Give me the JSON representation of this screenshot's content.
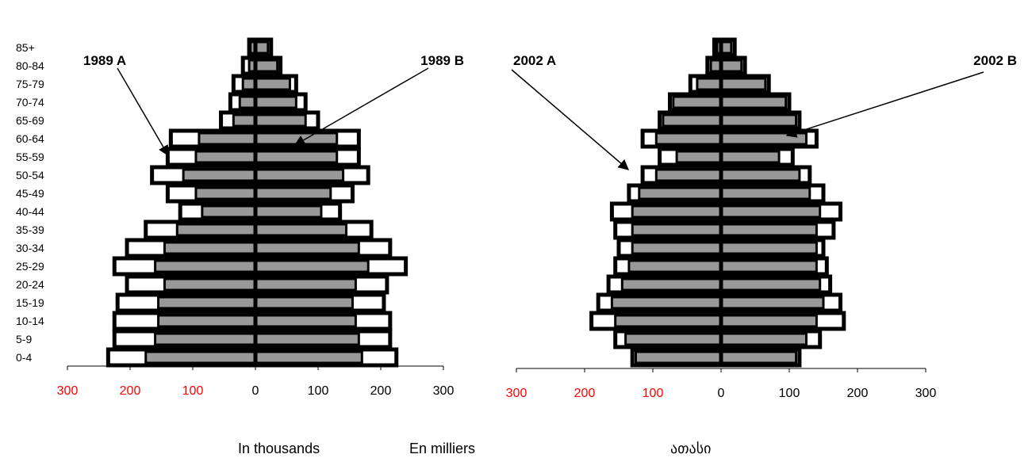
{
  "chart_data": {
    "type": "bar",
    "subtype": "population-pyramid",
    "categories": [
      "0-4",
      "5-9",
      "10-14",
      "15-19",
      "20-24",
      "25-29",
      "30-34",
      "35-39",
      "40-44",
      "45-49",
      "50-54",
      "55-59",
      "60-64",
      "65-69",
      "70-74",
      "75-79",
      "80-84",
      "85+"
    ],
    "x_tick_labels": [
      "300",
      "200",
      "100",
      "0",
      "100",
      "200",
      "300"
    ],
    "x_tick_values": [
      -300,
      -200,
      -100,
      0,
      100,
      200,
      300
    ],
    "xlim": [
      -300,
      300
    ],
    "colors": {
      "left_ticks": "#ff0000",
      "right_ticks": "#000000",
      "filled_bar": "#999999",
      "outline": "#000000",
      "open_bar": "#ffffff"
    },
    "units": [
      "In thousands",
      "En milliers",
      "ათასი"
    ],
    "panels": [
      {
        "annotations": [
          {
            "label": "1989 A",
            "points_to_group": "50-54",
            "side": "left"
          },
          {
            "label": "1989 B",
            "points_to_group": "55-59",
            "side": "right"
          }
        ],
        "series": [
          {
            "style": "outline-open",
            "left": [
              235,
              225,
              225,
              220,
              205,
              225,
              205,
              175,
              120,
              140,
              165,
              140,
              135,
              55,
              40,
              35,
              20,
              10
            ],
            "right": [
              225,
              215,
              215,
              205,
              210,
              240,
              215,
              185,
              135,
              155,
              180,
              165,
              165,
              100,
              80,
              65,
              40,
              25
            ]
          },
          {
            "style": "filled-gray",
            "left": [
              175,
              160,
              155,
              155,
              145,
              160,
              145,
              125,
              85,
              95,
              115,
              95,
              90,
              35,
              25,
              20,
              10,
              8
            ],
            "right": [
              170,
              165,
              160,
              155,
              160,
              180,
              165,
              145,
              105,
              120,
              140,
              130,
              130,
              80,
              65,
              55,
              35,
              20
            ]
          }
        ]
      },
      {
        "annotations": [
          {
            "label": "2002 A",
            "points_to_group": "45-49",
            "side": "left"
          },
          {
            "label": "2002 B",
            "points_to_group": "55-59",
            "side": "right"
          }
        ],
        "series": [
          {
            "style": "outline-open",
            "left": [
              130,
              155,
              190,
              180,
              165,
              155,
              150,
              155,
              160,
              135,
              115,
              90,
              115,
              90,
              75,
              45,
              20,
              10
            ],
            "right": [
              115,
              145,
              180,
              175,
              160,
              155,
              150,
              165,
              175,
              150,
              130,
              105,
              140,
              115,
              100,
              70,
              35,
              20
            ]
          },
          {
            "style": "filled-gray",
            "left": [
              125,
              140,
              155,
              160,
              145,
              135,
              130,
              130,
              130,
              120,
              95,
              65,
              95,
              85,
              70,
              35,
              15,
              6
            ],
            "right": [
              110,
              125,
              140,
              150,
              145,
              140,
              140,
              140,
              145,
              130,
              115,
              85,
              125,
              110,
              95,
              65,
              30,
              15
            ]
          }
        ]
      }
    ]
  }
}
